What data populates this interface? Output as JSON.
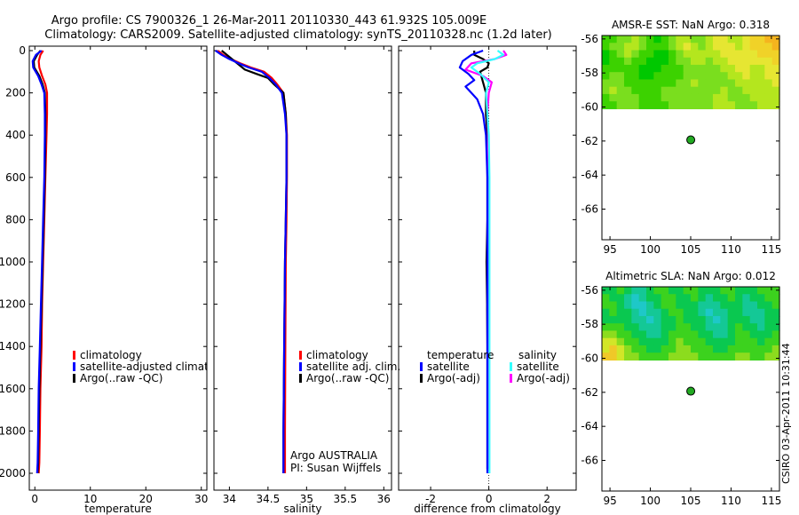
{
  "header": {
    "title_line1": "Argo profile: CS 7900326_1 26-Mar-2011 20110330_443 61.932S 105.009E",
    "title_line2": "Climatology: CARS2009. Satellite-adjusted climatology: synTS_20110328.nc (1.2d later)"
  },
  "side_stamp": "CSIRO 03-Apr-2011 10:31:44",
  "colors": {
    "climatology": "#ff0000",
    "satellite": "#0000ff",
    "argo": "#000000",
    "sat_salinity": "#33ffff",
    "argo_adj_salinity": "#ff00ff",
    "map_white": "#ffffff",
    "float_marker": "#22aa22"
  },
  "depth_axis": {
    "ylim": [
      0,
      2000
    ],
    "ticks": [
      "0",
      "200",
      "400",
      "600",
      "800",
      "1000",
      "1200",
      "1400",
      "1600",
      "1800",
      "2000"
    ],
    "tick_values": [
      0,
      200,
      400,
      600,
      800,
      1000,
      1200,
      1400,
      1600,
      1800,
      2000
    ]
  },
  "chart_data": [
    {
      "id": "temperature",
      "type": "line",
      "xlabel": "temperature",
      "xlim": [
        -1,
        31
      ],
      "xticks": [
        "0",
        "10",
        "20",
        "30"
      ],
      "xtick_values": [
        0,
        10,
        20,
        30
      ],
      "legend": {
        "entries": [
          "climatology",
          "satellite-adjusted climatology",
          "Argo(..raw -QC)"
        ],
        "placement": "lower-left"
      },
      "series": [
        {
          "name": "climatology",
          "color_key": "climatology",
          "x": [
            1.5,
            1.0,
            0.7,
            0.8,
            1.3,
            1.9,
            2.2,
            2.2,
            2.1,
            1.9,
            1.7,
            1.5,
            1.3,
            1.2,
            1.0,
            0.9,
            0.8,
            0.7
          ],
          "y": [
            0,
            20,
            50,
            80,
            120,
            160,
            200,
            300,
            400,
            600,
            800,
            1000,
            1200,
            1400,
            1600,
            1800,
            1950,
            2000
          ]
        },
        {
          "name": "Argo(..raw -QC)",
          "color_key": "argo",
          "x": [
            1.0,
            0.4,
            -0.2,
            -0.1,
            0.8,
            1.4,
            1.8,
            1.9,
            1.9,
            1.8,
            1.6,
            1.4,
            1.2,
            1.0,
            0.8,
            0.7,
            0.6,
            0.5
          ],
          "y": [
            0,
            20,
            50,
            80,
            120,
            160,
            200,
            300,
            400,
            600,
            800,
            1000,
            1200,
            1400,
            1600,
            1800,
            1950,
            2000
          ]
        },
        {
          "name": "satellite-adjusted climatology",
          "color_key": "satellite",
          "x": [
            1.2,
            0.2,
            -0.4,
            -0.3,
            0.6,
            1.2,
            1.7,
            1.8,
            1.8,
            1.7,
            1.5,
            1.3,
            1.1,
            0.9,
            0.7,
            0.6,
            0.5,
            0.4
          ],
          "y": [
            0,
            20,
            50,
            80,
            120,
            160,
            200,
            300,
            400,
            600,
            800,
            1000,
            1200,
            1400,
            1600,
            1800,
            1950,
            2000
          ]
        }
      ]
    },
    {
      "id": "salinity",
      "type": "line",
      "xlabel": "salinity",
      "xlim": [
        33.8,
        36.1
      ],
      "xticks": [
        "34",
        "34.5",
        "35",
        "35.5",
        "36"
      ],
      "xtick_values": [
        34,
        34.5,
        35,
        35.5,
        36
      ],
      "legend": {
        "entries": [
          "climatology",
          "satellite adj. clim.",
          "Argo(..raw -QC)"
        ],
        "placement": "lower-right"
      },
      "annotation": [
        "Argo AUSTRALIA",
        "PI: Susan Wijffels"
      ],
      "series": [
        {
          "name": "climatology",
          "color_key": "climatology",
          "x": [
            33.85,
            33.92,
            34.02,
            34.14,
            34.28,
            34.45,
            34.55,
            34.62,
            34.7,
            34.73,
            34.745,
            34.745,
            34.74,
            34.73,
            34.725,
            34.72,
            34.72
          ],
          "y": [
            0,
            20,
            40,
            60,
            80,
            100,
            130,
            160,
            200,
            300,
            400,
            600,
            800,
            1000,
            1400,
            1800,
            2000
          ]
        },
        {
          "name": "Argo(..raw -QC)",
          "color_key": "argo",
          "x": [
            33.9,
            34.0,
            34.1,
            34.2,
            34.35,
            34.5,
            34.58,
            34.7,
            34.73,
            34.74,
            34.74,
            34.73,
            34.72,
            34.71,
            34.7,
            34.7
          ],
          "y": [
            0,
            30,
            60,
            90,
            110,
            130,
            160,
            200,
            300,
            400,
            600,
            800,
            1000,
            1400,
            1800,
            2000
          ]
        },
        {
          "name": "satellite adj. clim.",
          "color_key": "satellite",
          "x": [
            33.82,
            33.9,
            34.0,
            34.12,
            34.25,
            34.42,
            34.52,
            34.6,
            34.68,
            34.72,
            34.74,
            34.74,
            34.73,
            34.72,
            34.71,
            34.7,
            34.7
          ],
          "y": [
            0,
            20,
            40,
            60,
            80,
            100,
            130,
            160,
            200,
            300,
            400,
            600,
            800,
            1000,
            1400,
            1800,
            2000
          ]
        }
      ]
    },
    {
      "id": "difference",
      "type": "line",
      "xlabel": "difference from climatology",
      "xlim": [
        -3.1,
        3.0
      ],
      "xticks": [
        "-2",
        "0",
        "2"
      ],
      "xtick_values": [
        -2,
        0,
        2
      ],
      "zero_line": "dotted",
      "legend": {
        "columns": [
          {
            "heading": "temperature",
            "entries": [
              "satellite",
              "Argo(-adj)"
            ]
          },
          {
            "heading": "salinity",
            "entries": [
              "satellite",
              "Argo(-adj)"
            ]
          }
        ],
        "placement": "lower-middle"
      },
      "series": [
        {
          "name": "temperature Argo(-adj)",
          "color_key": "argo",
          "x": [
            -0.5,
            -0.5,
            -0.2,
            0,
            -0.05,
            -0.3,
            -0.2,
            -0.1,
            -0.1,
            -0.05,
            -0.05,
            -0.05,
            -0.08,
            -0.06,
            -0.06,
            -0.05,
            -0.05,
            -0.05
          ],
          "y": [
            0,
            20,
            40,
            60,
            80,
            100,
            150,
            200,
            300,
            400,
            600,
            800,
            1000,
            1200,
            1230,
            1400,
            1800,
            1980
          ]
        },
        {
          "name": "salinity Argo(-adj)",
          "color_key": "argo_adj_salinity",
          "x": [
            0.5,
            0.6,
            0.2,
            -0.6,
            -0.8,
            -0.2,
            0.1,
            0.0,
            -0.05,
            -0.02,
            -0.02,
            -0.02,
            -0.02,
            -0.02,
            -0.02
          ],
          "y": [
            0,
            20,
            40,
            60,
            90,
            120,
            150,
            200,
            300,
            400,
            600,
            800,
            1000,
            1500,
            1980
          ]
        },
        {
          "name": "salinity satellite",
          "color_key": "sat_salinity",
          "x": [
            0.3,
            0.5,
            0.2,
            -0.4,
            -0.6,
            -0.3,
            0.0,
            -0.1,
            -0.05,
            0.0,
            0.02,
            0.02,
            0.02,
            0.02,
            0.02,
            0.02
          ],
          "y": [
            0,
            20,
            40,
            60,
            80,
            110,
            150,
            200,
            300,
            400,
            600,
            800,
            1000,
            1400,
            1800,
            2000
          ]
        },
        {
          "name": "temperature satellite",
          "color_key": "satellite",
          "x": [
            -0.2,
            -0.6,
            -0.9,
            -1.0,
            -0.7,
            -0.5,
            -0.8,
            -0.6,
            -0.4,
            -0.2,
            -0.1,
            -0.05,
            -0.05,
            -0.05,
            -0.05,
            -0.05,
            -0.05
          ],
          "y": [
            0,
            20,
            50,
            80,
            110,
            140,
            170,
            200,
            230,
            300,
            400,
            600,
            800,
            1000,
            1400,
            1800,
            2000
          ]
        }
      ]
    },
    {
      "id": "amsre_map",
      "type": "heatmap",
      "title": "AMSR-E SST: NaN Argo: 0.318",
      "xlim": [
        94,
        116
      ],
      "ylim": [
        -67.8,
        -55.8
      ],
      "xticks": [
        "95",
        "100",
        "105",
        "110",
        "115"
      ],
      "xtick_values": [
        95,
        100,
        105,
        110,
        115
      ],
      "yticks": [
        "-56",
        "-58",
        "-60",
        "-62",
        "-64",
        "-66"
      ],
      "ytick_values": [
        -56,
        -58,
        -60,
        -62,
        -64,
        -66
      ],
      "data_region_lat": [
        -60.1,
        -55.8
      ],
      "float_position": {
        "lon": 105.009,
        "lat": -61.932
      },
      "palette": [
        "#00c800",
        "#3cd200",
        "#7ade1e",
        "#b4e61e",
        "#e6e632",
        "#f0d228",
        "#f5b41e"
      ],
      "grid": [
        [
          1,
          1,
          2,
          2,
          3,
          2,
          1,
          0,
          1,
          2,
          3,
          3,
          2,
          2,
          3,
          4,
          4,
          3,
          3,
          4,
          5,
          5,
          6,
          6
        ],
        [
          1,
          2,
          2,
          3,
          3,
          2,
          1,
          1,
          1,
          2,
          3,
          4,
          3,
          2,
          3,
          4,
          4,
          4,
          3,
          4,
          5,
          5,
          5,
          6
        ],
        [
          0,
          1,
          2,
          3,
          2,
          1,
          1,
          0,
          0,
          1,
          2,
          3,
          3,
          3,
          3,
          3,
          4,
          4,
          4,
          4,
          4,
          5,
          5,
          5
        ],
        [
          0,
          1,
          1,
          2,
          1,
          1,
          0,
          0,
          0,
          1,
          2,
          2,
          3,
          3,
          2,
          3,
          3,
          4,
          4,
          4,
          4,
          4,
          4,
          5
        ],
        [
          1,
          1,
          1,
          1,
          1,
          0,
          0,
          0,
          1,
          1,
          1,
          2,
          2,
          2,
          2,
          2,
          3,
          3,
          4,
          4,
          3,
          3,
          4,
          4
        ],
        [
          1,
          2,
          2,
          1,
          1,
          0,
          0,
          1,
          1,
          1,
          1,
          2,
          2,
          2,
          2,
          2,
          2,
          3,
          3,
          4,
          3,
          3,
          4,
          4
        ],
        [
          2,
          2,
          2,
          1,
          1,
          1,
          1,
          1,
          1,
          1,
          2,
          2,
          3,
          2,
          2,
          2,
          2,
          2,
          3,
          3,
          3,
          3,
          3,
          4
        ],
        [
          2,
          3,
          2,
          2,
          1,
          1,
          1,
          1,
          2,
          2,
          2,
          2,
          2,
          2,
          2,
          2,
          3,
          2,
          2,
          3,
          3,
          3,
          3,
          3
        ],
        [
          1,
          2,
          2,
          2,
          2,
          1,
          1,
          1,
          2,
          2,
          2,
          2,
          2,
          2,
          2,
          3,
          3,
          2,
          2,
          2,
          3,
          3,
          3,
          3
        ],
        [
          1,
          1,
          2,
          2,
          2,
          1,
          1,
          1,
          1,
          2,
          2,
          2,
          2,
          2,
          2,
          3,
          3,
          3,
          2,
          2,
          2,
          3,
          3,
          3
        ]
      ]
    },
    {
      "id": "sla_map",
      "type": "heatmap",
      "title": "Altimetric SLA: NaN Argo: 0.012",
      "xlim": [
        94,
        116
      ],
      "ylim": [
        -67.8,
        -55.8
      ],
      "xticks": [
        "95",
        "100",
        "105",
        "110",
        "115"
      ],
      "xtick_values": [
        95,
        100,
        105,
        110,
        115
      ],
      "yticks": [
        "-56",
        "-58",
        "-60",
        "-62",
        "-64",
        "-66"
      ],
      "ytick_values": [
        -56,
        -58,
        -60,
        -62,
        -64,
        -66
      ],
      "data_region_lat": [
        -60.1,
        -55.8
      ],
      "float_position": {
        "lon": 105.009,
        "lat": -61.932
      },
      "palette": [
        "#1ec8c8",
        "#14c896",
        "#0ac850",
        "#3cd21e",
        "#8cdc1e",
        "#d2e628",
        "#f0c828"
      ],
      "grid": [
        [
          2,
          2,
          3,
          2,
          1,
          1,
          2,
          3,
          3,
          2,
          2,
          3,
          3,
          2,
          2,
          2,
          3,
          3,
          2,
          2,
          2,
          3,
          3,
          3
        ],
        [
          3,
          2,
          2,
          1,
          0,
          1,
          2,
          2,
          3,
          3,
          2,
          2,
          3,
          2,
          1,
          2,
          2,
          3,
          2,
          1,
          2,
          2,
          3,
          3
        ],
        [
          3,
          3,
          2,
          1,
          0,
          0,
          1,
          2,
          3,
          3,
          2,
          2,
          2,
          1,
          1,
          1,
          2,
          2,
          2,
          1,
          1,
          2,
          2,
          3
        ],
        [
          2,
          3,
          2,
          2,
          1,
          0,
          1,
          1,
          2,
          3,
          3,
          2,
          2,
          1,
          0,
          1,
          1,
          2,
          2,
          1,
          1,
          1,
          2,
          2
        ],
        [
          2,
          2,
          2,
          2,
          1,
          1,
          0,
          1,
          2,
          2,
          3,
          2,
          2,
          2,
          1,
          0,
          1,
          2,
          2,
          2,
          1,
          1,
          2,
          2
        ],
        [
          3,
          3,
          3,
          2,
          2,
          1,
          1,
          1,
          2,
          2,
          3,
          3,
          2,
          2,
          1,
          1,
          1,
          2,
          3,
          2,
          2,
          1,
          2,
          2
        ],
        [
          4,
          4,
          3,
          3,
          2,
          2,
          1,
          1,
          2,
          3,
          3,
          3,
          3,
          2,
          2,
          1,
          1,
          2,
          3,
          3,
          2,
          2,
          2,
          3
        ],
        [
          5,
          5,
          4,
          3,
          3,
          2,
          2,
          2,
          2,
          3,
          4,
          3,
          3,
          3,
          2,
          2,
          2,
          2,
          3,
          3,
          3,
          2,
          3,
          3
        ],
        [
          5,
          6,
          5,
          4,
          3,
          3,
          2,
          2,
          3,
          3,
          4,
          4,
          3,
          3,
          3,
          2,
          2,
          3,
          3,
          3,
          3,
          3,
          3,
          4
        ],
        [
          6,
          6,
          5,
          4,
          4,
          3,
          3,
          3,
          3,
          4,
          4,
          4,
          4,
          3,
          3,
          3,
          3,
          3,
          4,
          4,
          3,
          3,
          4,
          4
        ]
      ]
    }
  ]
}
